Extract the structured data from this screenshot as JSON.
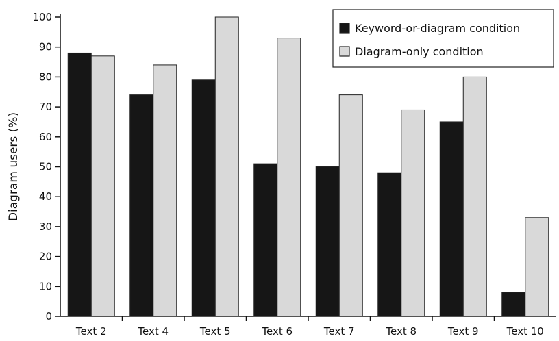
{
  "chart_data": {
    "type": "bar",
    "title": "",
    "xlabel": "",
    "ylabel": "Diagram users (%)",
    "ylim": [
      0,
      100
    ],
    "yticks": [
      0,
      10,
      20,
      30,
      40,
      50,
      60,
      70,
      80,
      90,
      100
    ],
    "categories": [
      "Text 2",
      "Text 4",
      "Text 5",
      "Text 6",
      "Text 7",
      "Text 8",
      "Text 9",
      "Text 10"
    ],
    "series": [
      {
        "name": "Keyword-or-diagram condition",
        "color": "#161616",
        "values": [
          88,
          74,
          79,
          51,
          50,
          48,
          65,
          8
        ]
      },
      {
        "name": "Diagram-only condition",
        "color": "#d9d9d9",
        "values": [
          87,
          84,
          100,
          93,
          74,
          69,
          80,
          33
        ]
      }
    ],
    "legend_position": "top-right",
    "grid": false
  }
}
